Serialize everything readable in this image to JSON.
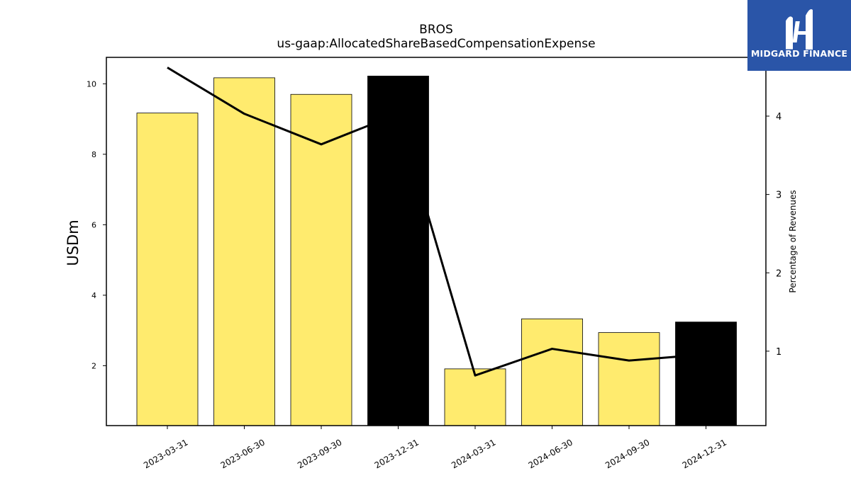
{
  "chart_data": {
    "type": "bar",
    "title": "BROS",
    "subtitle": "us-gaap:AllocatedShareBasedCompensationExpense",
    "ylabel": "USDm",
    "y2label": "Percentage of Revenues",
    "categories": [
      "2023-03-31",
      "2023-06-30",
      "2023-09-30",
      "2023-12-31",
      "2024-03-31",
      "2024-06-30",
      "2024-09-30",
      "2024-12-31"
    ],
    "series": [
      {
        "values": [
          9.17,
          10.17,
          9.7,
          10.22,
          1.91,
          3.33,
          2.94,
          3.24
        ],
        "colors": [
          "#ffeb6e",
          "#ffeb6e",
          "#ffeb6e",
          "#000000",
          "#ffeb6e",
          "#ffeb6e",
          "#ffeb6e",
          "#000000"
        ]
      },
      {
        "type": "line",
        "axis": "right",
        "values": [
          4.62,
          4.03,
          3.64,
          4.03,
          0.69,
          1.03,
          0.88,
          0.96
        ],
        "color": "#000000"
      }
    ],
    "ylim": [
      0.3,
      10.75
    ],
    "y2lim": [
      0.05,
      4.75
    ],
    "yticks": [
      2,
      4,
      6,
      8,
      10
    ],
    "y2ticks": [
      1,
      2,
      3,
      4
    ],
    "grid": false
  },
  "logo": {
    "text": "MIDGARD FINANCE",
    "bg_color": "#2a55a8"
  }
}
